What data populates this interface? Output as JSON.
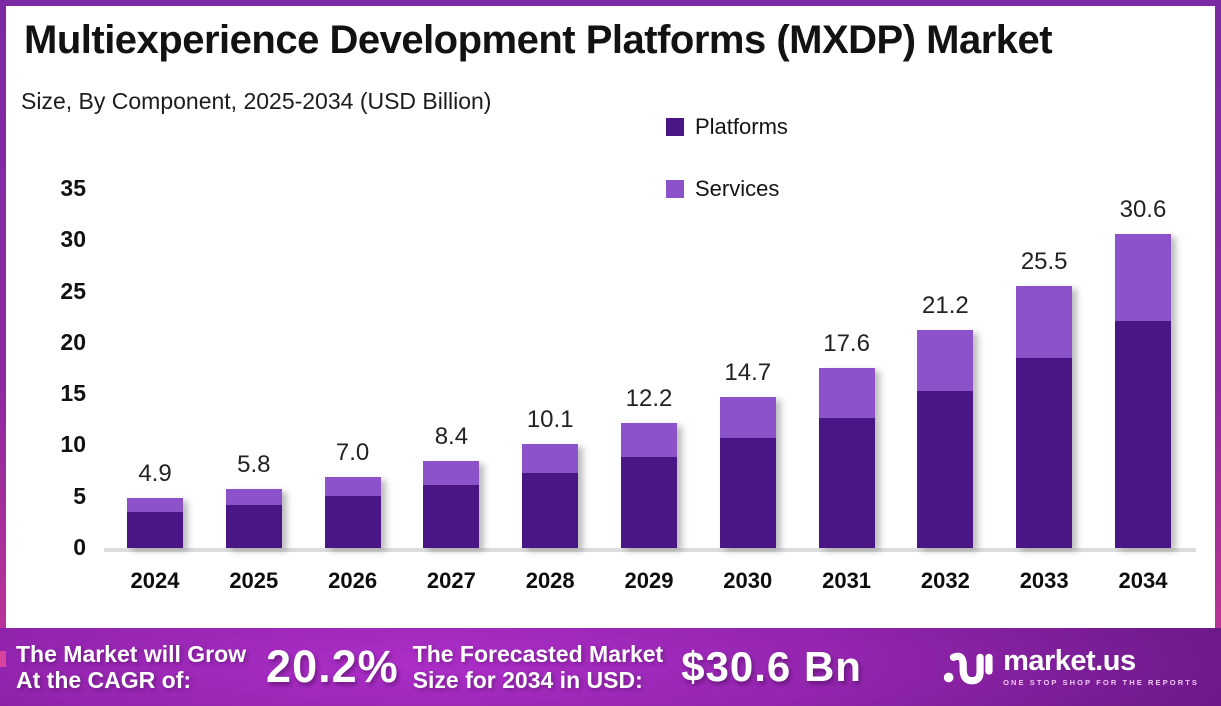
{
  "chart_data": {
    "type": "bar",
    "stacked": true,
    "title": "Multiexperience Development Platforms (MXDP) Market",
    "subtitle": "Size, By Component, 2025-2034 (USD Billion)",
    "unit": "USD Billion",
    "categories": [
      "2024",
      "2025",
      "2026",
      "2027",
      "2028",
      "2029",
      "2030",
      "2031",
      "2032",
      "2033",
      "2034"
    ],
    "series": [
      {
        "name": "Platforms",
        "color": "#4a1585",
        "values": [
          3.5,
          4.2,
          5.1,
          6.1,
          7.3,
          8.9,
          10.7,
          12.7,
          15.3,
          18.5,
          22.1
        ]
      },
      {
        "name": "Services",
        "color": "#8c52c9",
        "values": [
          1.4,
          1.6,
          1.9,
          2.3,
          2.8,
          3.3,
          4.0,
          4.9,
          5.9,
          7.0,
          8.5
        ]
      }
    ],
    "totals": [
      4.9,
      5.8,
      7.0,
      8.4,
      10.1,
      12.2,
      14.7,
      17.6,
      21.2,
      25.5,
      30.6
    ],
    "ylim": [
      0,
      35
    ],
    "yticks": [
      0,
      5,
      10,
      15,
      20,
      25,
      30,
      35
    ],
    "grid": false,
    "legend_position": "top-center"
  },
  "legend": {
    "items": [
      {
        "label": "Platforms",
        "color": "#4a1585"
      },
      {
        "label": "Services",
        "color": "#8c52c9"
      }
    ]
  },
  "banner": {
    "cagr_label_line1": "The Market will Grow",
    "cagr_label_line2": "At the CAGR of:",
    "cagr_value": "20.2%",
    "forecast_label_line1": "The Forecasted Market",
    "forecast_label_line2": "Size for 2034 in USD:",
    "forecast_value": "$30.6 Bn",
    "logo_text": "market.us",
    "logo_tagline": "ONE STOP SHOP FOR THE REPORTS"
  },
  "colors": {
    "platforms_bar": "#4a1585",
    "services_bar": "#8c52c9",
    "border_top": "#7b2aa4",
    "border_bottom": "#c93594",
    "banner_center": "#ad2ec9",
    "banner_edge": "#5c1377",
    "baseline": "#dcdcdc",
    "accent": "#d8439e",
    "title_text": "#121212"
  }
}
